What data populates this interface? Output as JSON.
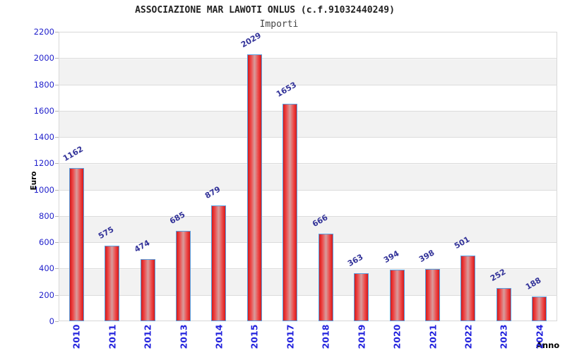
{
  "chart_data": {
    "type": "bar",
    "title": "ASSOCIAZIONE MAR LAWOTI ONLUS (c.f.91032440249)",
    "subtitle": "Importi",
    "xlabel": "Anno",
    "ylabel": "Euro",
    "categories": [
      "2010",
      "2011",
      "2012",
      "2013",
      "2014",
      "2015",
      "2017",
      "2018",
      "2019",
      "2020",
      "2021",
      "2022",
      "2023",
      "2024"
    ],
    "values": [
      1162,
      575,
      474,
      685,
      879,
      2029,
      1653,
      666,
      363,
      394,
      398,
      501,
      252,
      188
    ],
    "ylim": [
      0,
      2200
    ],
    "yticks": [
      0,
      200,
      400,
      600,
      800,
      1000,
      1200,
      1400,
      1600,
      1800,
      2000,
      2200
    ],
    "grid": "horizontal-bands-every-200",
    "legend": "none",
    "colors": {
      "bar_fill_edge": "#d51a1a",
      "bar_fill_mid": "#d89c9c",
      "bar_border": "#58a0e0",
      "value_label": "#333399",
      "tick_label": "#2222cc",
      "axis_title": "#000000",
      "band_gray": "#f2f2f2",
      "grid_line": "#dcdcdc"
    }
  }
}
